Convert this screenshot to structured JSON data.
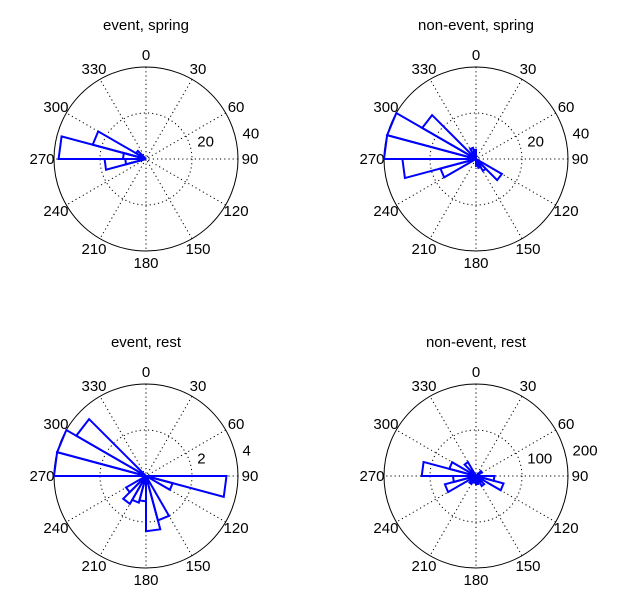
{
  "chart_data": [
    {
      "type": "polar-histogram",
      "title": "event, spring",
      "theta_zero": "top",
      "theta_direction": "clockwise",
      "theta_tick_labels": [
        "0",
        "30",
        "60",
        "90",
        "120",
        "150",
        "180",
        "210",
        "240",
        "270",
        "300",
        "330"
      ],
      "r_ticks": [
        20,
        40
      ],
      "r_tick_labels": [
        "20",
        "40"
      ],
      "rmax": 40,
      "bin_width_deg": 15,
      "grid": true,
      "bins": [
        {
          "center_deg": 262.5,
          "count": 9
        },
        {
          "center_deg": 277.5,
          "count": 10
        },
        {
          "center_deg": 262.5,
          "count": 18
        },
        {
          "center_deg": 277.5,
          "count": 38
        },
        {
          "center_deg": 292.5,
          "count": 24
        },
        {
          "center_deg": 307.5,
          "count": 5
        }
      ]
    },
    {
      "type": "polar-histogram",
      "title": "non-event, spring",
      "theta_zero": "top",
      "theta_direction": "clockwise",
      "theta_tick_labels": [
        "0",
        "30",
        "60",
        "90",
        "120",
        "150",
        "180",
        "210",
        "240",
        "270",
        "300",
        "330"
      ],
      "r_ticks": [
        20,
        40
      ],
      "r_tick_labels": [
        "20",
        "40"
      ],
      "rmax": 40,
      "bin_width_deg": 15,
      "grid": true,
      "bins": [
        {
          "center_deg": 127.5,
          "count": 13
        },
        {
          "center_deg": 142.5,
          "count": 6
        },
        {
          "center_deg": 157.5,
          "count": 4
        },
        {
          "center_deg": 172.5,
          "count": 3
        },
        {
          "center_deg": 247.5,
          "count": 16
        },
        {
          "center_deg": 262.5,
          "count": 32
        },
        {
          "center_deg": 277.5,
          "count": 42
        },
        {
          "center_deg": 292.5,
          "count": 41
        },
        {
          "center_deg": 307.5,
          "count": 27
        },
        {
          "center_deg": 337.5,
          "count": 5
        },
        {
          "center_deg": 352.5,
          "count": 4
        }
      ]
    },
    {
      "type": "polar-histogram",
      "title": "event, rest",
      "theta_zero": "top",
      "theta_direction": "clockwise",
      "theta_tick_labels": [
        "0",
        "30",
        "60",
        "90",
        "120",
        "150",
        "180",
        "210",
        "240",
        "270",
        "300",
        "330"
      ],
      "r_ticks": [
        2,
        4
      ],
      "r_tick_labels": [
        "2",
        "4"
      ],
      "rmax": 4,
      "bin_width_deg": 15,
      "grid": true,
      "bins": [
        {
          "center_deg": 97.5,
          "count": 3.5
        },
        {
          "center_deg": 112.5,
          "count": 1.2
        },
        {
          "center_deg": 157.5,
          "count": 2.0
        },
        {
          "center_deg": 172.5,
          "count": 2.4
        },
        {
          "center_deg": 187.5,
          "count": 1.1
        },
        {
          "center_deg": 202.5,
          "count": 1.2
        },
        {
          "center_deg": 217.5,
          "count": 1.4
        },
        {
          "center_deg": 232.5,
          "count": 1.0
        },
        {
          "center_deg": 277.5,
          "count": 4.6
        },
        {
          "center_deg": 292.5,
          "count": 4.2
        },
        {
          "center_deg": 307.5,
          "count": 3.5
        }
      ]
    },
    {
      "type": "polar-histogram",
      "title": "non-event, rest",
      "theta_zero": "top",
      "theta_direction": "clockwise",
      "theta_tick_labels": [
        "0",
        "30",
        "60",
        "90",
        "120",
        "150",
        "180",
        "210",
        "240",
        "270",
        "300",
        "330"
      ],
      "r_ticks": [
        100,
        200
      ],
      "r_tick_labels": [
        "100",
        "200"
      ],
      "rmax": 200,
      "bin_width_deg": 15,
      "grid": true,
      "bins": [
        {
          "center_deg": 52.5,
          "count": 15
        },
        {
          "center_deg": 97.5,
          "count": 40
        },
        {
          "center_deg": 112.5,
          "count": 62
        },
        {
          "center_deg": 142.5,
          "count": 25
        },
        {
          "center_deg": 172.5,
          "count": 18
        },
        {
          "center_deg": 187.5,
          "count": 15
        },
        {
          "center_deg": 217.5,
          "count": 20
        },
        {
          "center_deg": 247.5,
          "count": 70
        },
        {
          "center_deg": 262.5,
          "count": 50
        },
        {
          "center_deg": 277.5,
          "count": 118
        },
        {
          "center_deg": 292.5,
          "count": 60
        },
        {
          "center_deg": 322.5,
          "count": 35
        }
      ]
    }
  ]
}
